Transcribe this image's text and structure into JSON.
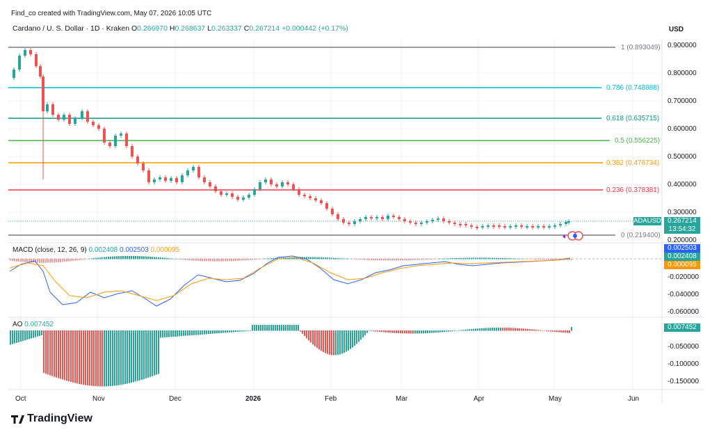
{
  "header": {
    "created_by": "Find_co created with TradingView.com, May 07, 2026 10:05 UTC"
  },
  "symbol": {
    "name": "Cardano / U. S. Dollar · 1D · Kraken",
    "o_label": "O",
    "o": "0.266970",
    "h_label": "H",
    "h": "0.268637",
    "l_label": "L",
    "l": "0.263337",
    "c_label": "C",
    "c": "0.267214",
    "change": "+0.000442 (+0.17%)"
  },
  "currency": "USD",
  "price_axis": [
    "0.900000",
    "0.800000",
    "0.700000",
    "0.600000",
    "0.500000",
    "0.400000",
    "0.300000",
    "0.200000"
  ],
  "fib_levels": [
    {
      "label": "1 (0.893049)",
      "color": "#787b86"
    },
    {
      "label": "0.786 (0.748888)",
      "color": "#00bcd4"
    },
    {
      "label": "0.618 (0.635715)",
      "color": "#089981"
    },
    {
      "label": "0.5 (0.556225)",
      "color": "#4caf50"
    },
    {
      "label": "0.382 (0.476734)",
      "color": "#ff9800"
    },
    {
      "label": "0.236 (0.378381)",
      "color": "#f23645"
    },
    {
      "label": "0 (0.219400)",
      "color": "#787b86"
    }
  ],
  "ticker_tag": {
    "symbol": "ADAUSD",
    "price": "0.267214",
    "countdown": "13:54:32"
  },
  "macd": {
    "title": "MACD (close, 12, 26, 9)",
    "v1": "0.002408",
    "v2": "0.002503",
    "v3": "0.000095",
    "axis": [
      "-0.020000",
      "-0.040000",
      "-0.060000"
    ],
    "tag_blue": "0.002503",
    "tag_green": "0.002408",
    "tag_orange": "0.000095"
  },
  "ao": {
    "title": "AO",
    "value": "0.007452",
    "axis": [
      "-0.050000",
      "-0.100000",
      "-0.150000"
    ],
    "tag": "0.007452"
  },
  "x_axis": [
    "Oct",
    "Nov",
    "Dec",
    "2026",
    "Feb",
    "Mar",
    "Apr",
    "May",
    "Jun"
  ],
  "brand": "TradingView",
  "colors": {
    "up": "#26a69a",
    "down": "#ef5350",
    "macd": "#2962ff",
    "signal": "#ff9800"
  }
}
